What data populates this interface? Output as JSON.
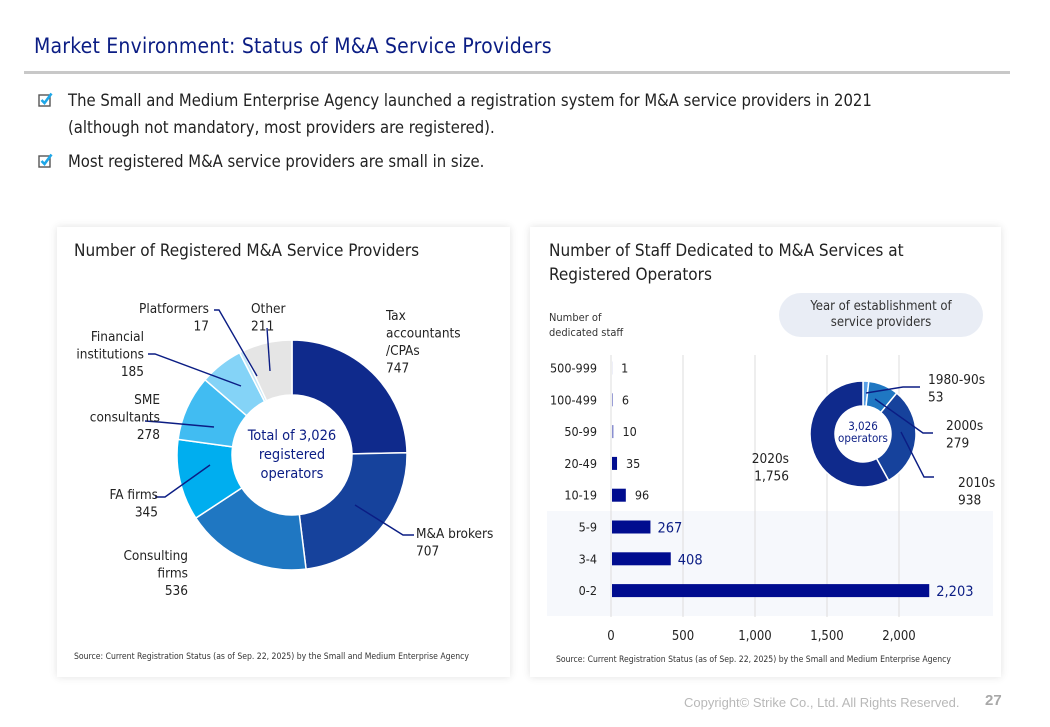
{
  "header": {
    "title": "Market Environment: Status of M&A Service Providers"
  },
  "bullets": [
    {
      "icon": "checkbox-checked-icon",
      "lines": [
        "The Small and Medium Enterprise Agency launched a registration system for M&A service providers in 2021",
        "(although not mandatory, most providers are registered)."
      ]
    },
    {
      "icon": "checkbox-checked-icon",
      "lines": [
        "Most registered M&A service providers are small in size."
      ]
    }
  ],
  "colors": {
    "brand_navy": "#0b1d84",
    "bar_navy": "#000c8f",
    "checkbox_blue": "#1ea7e8"
  },
  "footer": {
    "copyright": "Copyright© Strike Co., Ltd. All Rights Reserved.",
    "page_number": "27"
  },
  "chart_data": [
    {
      "type": "pie",
      "variant": "donut",
      "title": "Number of Registered M&A Service Providers",
      "center_label": [
        "Total of 3,026",
        "registered",
        "operators"
      ],
      "total": 3026,
      "slices": [
        {
          "label": "Tax accountants /CPAs",
          "label_lines": [
            "Tax",
            "accountants",
            "/CPAs",
            "747"
          ],
          "value": 747,
          "color": "#0f2a8c"
        },
        {
          "label": "M&A brokers",
          "label_lines": [
            "M&A brokers",
            "707"
          ],
          "value": 707,
          "color": "#16429c"
        },
        {
          "label": "Consulting firms",
          "label_lines": [
            "Consulting",
            "firms",
            "536"
          ],
          "value": 536,
          "color": "#1f77c2"
        },
        {
          "label": "FA firms",
          "label_lines": [
            "FA firms",
            "345"
          ],
          "value": 345,
          "color": "#00aeef"
        },
        {
          "label": "SME consultants",
          "label_lines": [
            "SME",
            "consultants",
            "278"
          ],
          "value": 278,
          "color": "#41bcf2"
        },
        {
          "label": "Financial institutions",
          "label_lines": [
            "Financial",
            "institutions",
            "185"
          ],
          "value": 185,
          "color": "#84d3f7"
        },
        {
          "label": "Platformers",
          "label_lines": [
            "Platformers",
            "17"
          ],
          "value": 17,
          "color": "#c4e6f7"
        },
        {
          "label": "Other",
          "label_lines": [
            "Other",
            "211"
          ],
          "value": 211,
          "color": "#e5e5e5"
        }
      ],
      "source": "Source: Current Registration Status (as of Sep. 22, 2025) by the Small and Medium Enterprise Agency"
    },
    {
      "type": "bar",
      "orientation": "horizontal",
      "title": "Number of Staff Dedicated to M&A Services at Registered Operators",
      "title_lines": [
        "Number of Staff Dedicated to M&A Services at",
        "Registered Operators"
      ],
      "ylabel": "Number of dedicated staff",
      "ylabel_lines": [
        "Number of",
        "dedicated staff"
      ],
      "categories": [
        "500-999",
        "100-499",
        "50-99",
        "20-49",
        "10-19",
        "5-9",
        "3-4",
        "0-2"
      ],
      "values": [
        1,
        6,
        10,
        35,
        96,
        267,
        408,
        2203
      ],
      "value_labels": [
        "1",
        "6",
        "10",
        "35",
        "96",
        "267",
        "408",
        "2,203"
      ],
      "highlighted_categories": [
        "5-9",
        "3-4",
        "0-2"
      ],
      "xlim": [
        0,
        2500
      ],
      "xticks": [
        0,
        500,
        1000,
        1500,
        2000
      ],
      "xtick_labels": [
        "0",
        "500",
        "1,000",
        "1,500",
        "2,000"
      ],
      "grid": true,
      "source": "Source: Current Registration Status (as of Sep. 22, 2025) by the Small and Medium Enterprise Agency"
    },
    {
      "type": "pie",
      "variant": "donut",
      "title": "Year of establishment of service providers",
      "title_lines": [
        "Year of establishment of",
        "service providers"
      ],
      "center_label": [
        "3,026",
        "operators"
      ],
      "total": 3026,
      "slices": [
        {
          "label": "1980-90s",
          "label_lines": [
            "1980-90s",
            "53"
          ],
          "value": 53,
          "color": "#5aa0e6"
        },
        {
          "label": "2000s",
          "label_lines": [
            "2000s",
            "279"
          ],
          "value": 279,
          "color": "#1f77c2"
        },
        {
          "label": "2010s",
          "label_lines": [
            "2010s",
            "938"
          ],
          "value": 938,
          "color": "#16429c"
        },
        {
          "label": "2020s",
          "label_lines": [
            "2020s",
            "1,756"
          ],
          "value": 1756,
          "color": "#0f2a8c"
        }
      ]
    }
  ]
}
